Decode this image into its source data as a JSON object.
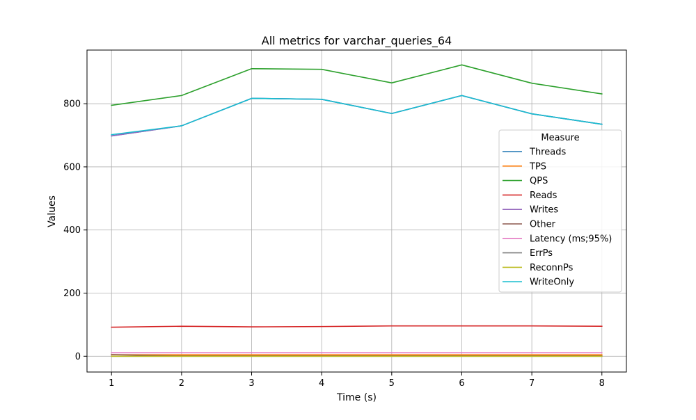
{
  "chart_data": {
    "type": "line",
    "title": "All metrics for varchar_queries_64",
    "xlabel": "Time (s)",
    "ylabel": "Values",
    "x": [
      1,
      2,
      3,
      4,
      5,
      6,
      7,
      8
    ],
    "xlim": [
      0.65,
      8.35
    ],
    "ylim": [
      -50,
      970
    ],
    "x_ticks": [
      1,
      2,
      3,
      4,
      5,
      6,
      7,
      8
    ],
    "y_ticks": [
      0,
      200,
      400,
      600,
      800
    ],
    "grid": true,
    "legend": {
      "title": "Measure",
      "placement": "center-right"
    },
    "series": [
      {
        "name": "Threads",
        "color": "#1f77b4",
        "values": [
          698,
          730,
          817,
          814,
          769,
          826,
          768,
          735
        ]
      },
      {
        "name": "TPS",
        "color": "#ff7f0e",
        "values": [
          4.6,
          4.6,
          4.6,
          4.6,
          4.6,
          4.6,
          4.6,
          4.6
        ]
      },
      {
        "name": "QPS",
        "color": "#2ca02c",
        "values": [
          795,
          826,
          911,
          909,
          866,
          923,
          865,
          831
        ]
      },
      {
        "name": "Reads",
        "color": "#d62728",
        "values": [
          92,
          95,
          93,
          94,
          96,
          96,
          96,
          95
        ]
      },
      {
        "name": "Writes",
        "color": "#9467bd",
        "values": [
          698,
          730,
          817,
          814,
          769,
          826,
          768,
          735
        ]
      },
      {
        "name": "Other",
        "color": "#8c564b",
        "values": [
          5,
          1,
          1,
          1,
          1,
          1,
          1,
          1
        ]
      },
      {
        "name": "Latency (ms;95%)",
        "color": "#e377c2",
        "values": [
          11,
          11,
          11,
          11,
          11,
          11,
          11,
          11
        ]
      },
      {
        "name": "ErrPs",
        "color": "#7f7f7f",
        "values": [
          0,
          0,
          0,
          0,
          0,
          0,
          0,
          0
        ]
      },
      {
        "name": "ReconnPs",
        "color": "#bcbd22",
        "values": [
          0,
          0,
          0,
          0,
          0,
          0,
          0,
          0
        ]
      },
      {
        "name": "WriteOnly",
        "color": "#17becf",
        "values": [
          702,
          730,
          817,
          814,
          769,
          826,
          768,
          735
        ]
      }
    ]
  }
}
